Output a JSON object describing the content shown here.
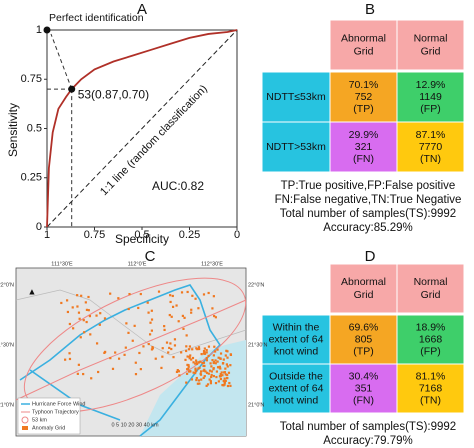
{
  "chart_data": {
    "type": "line",
    "title": "A",
    "xlabel": "Specificity",
    "ylabel": "Sensitivity",
    "x": [
      1,
      0.99,
      0.97,
      0.94,
      0.9,
      0.87,
      0.82,
      0.75,
      0.65,
      0.55,
      0.45,
      0.35,
      0.25,
      0.15,
      0.05,
      0
    ],
    "values": [
      0,
      0.3,
      0.48,
      0.6,
      0.66,
      0.7,
      0.75,
      0.8,
      0.84,
      0.87,
      0.9,
      0.93,
      0.96,
      0.98,
      0.99,
      1
    ],
    "color": "#b03028",
    "xlim": [
      1,
      0
    ],
    "ylim": [
      0,
      1
    ],
    "xticks": [
      1,
      0.75,
      0.5,
      0.25,
      0
    ],
    "yticks": [
      0,
      0.25,
      0.5,
      0.75,
      1
    ],
    "points": [
      {
        "label": "Perfect identification",
        "x": 1,
        "y": 1
      },
      {
        "label": "53(0.87,0.70)",
        "x": 0.87,
        "y": 0.7
      }
    ],
    "diagonal_label": "1:1 line (random classification)",
    "auc_label": "AUC:0.82"
  },
  "panel_b": {
    "title": "B",
    "columns": [
      [
        "Abnormal",
        "Grid"
      ],
      [
        "Normal",
        "Grid"
      ]
    ],
    "rows": [
      {
        "label": [
          "NDTT≤53km"
        ],
        "cells": [
          [
            "70.1%",
            "752",
            "(TP)"
          ],
          [
            "12.9%",
            "1149",
            "(FP)"
          ]
        ]
      },
      {
        "label": [
          "NDTT>53km"
        ],
        "cells": [
          [
            "29.9%",
            "321",
            "(FN)"
          ],
          [
            "87.1%",
            "7770",
            "(TN)"
          ]
        ]
      }
    ],
    "cell_colors": [
      [
        "#f5a623",
        "#3ecf6a"
      ],
      [
        "#d86cf0",
        "#ffc90e"
      ]
    ],
    "notes": [
      "TP:True positive,FP:False positive",
      "FN:False negative,TN:True Negative",
      "Total number of samples(TS):9992",
      "Accuracy:85.29%"
    ]
  },
  "panel_c": {
    "title": "C",
    "lon_labels": [
      "111°30'E",
      "112°0'E",
      "112°30'E"
    ],
    "lat_labels": [
      "22°0'N",
      "21°30'N",
      "21°0'N"
    ],
    "legend": [
      "Hurricane Force Wind",
      "Typhoon Trajectory",
      "53 km",
      "Anomaly Grid"
    ],
    "scale": "0 5 10 20 30 40 km"
  },
  "panel_d": {
    "title": "D",
    "columns": [
      [
        "Abnormal",
        "Grid"
      ],
      [
        "Normal",
        "Grid"
      ]
    ],
    "rows": [
      {
        "label": [
          "Within the",
          "extent of 64",
          "knot wind"
        ],
        "cells": [
          [
            "69.6%",
            "805",
            "(TP)"
          ],
          [
            "18.9%",
            "1668",
            "(FP)"
          ]
        ]
      },
      {
        "label": [
          "Outside the",
          "extent of 64",
          "knot wind"
        ],
        "cells": [
          [
            "30.4%",
            "351",
            "(FN)"
          ],
          [
            "81.1%",
            "7168",
            "(TN)"
          ]
        ]
      }
    ],
    "cell_colors": [
      [
        "#f5a623",
        "#3ecf6a"
      ],
      [
        "#d86cf0",
        "#ffc90e"
      ]
    ],
    "notes": [
      "Total number of samples(TS):9992",
      "Accuracy:79.79%"
    ]
  }
}
